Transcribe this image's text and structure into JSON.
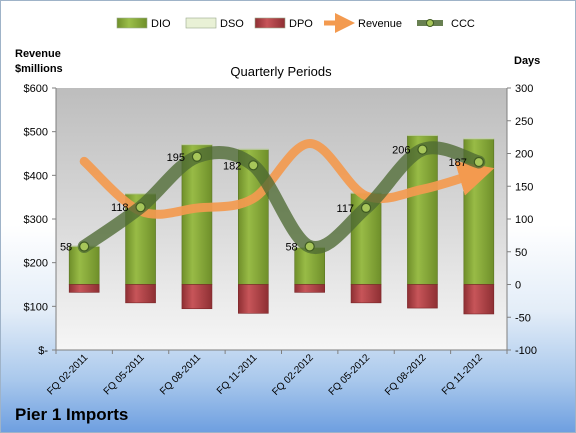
{
  "company": "Pier 1 Imports",
  "chart_data": {
    "type": "bar",
    "subtitle": "Quarterly Periods",
    "left_axis_label": [
      "Revenue",
      "$millions"
    ],
    "right_axis_label": "Days",
    "categories": [
      "FQ 02-2011",
      "FQ 05-2011",
      "FQ 08-2011",
      "FQ 11-2011",
      "FQ 02-2012",
      "FQ 05-2012",
      "FQ 08-2012",
      "FQ 11-2012"
    ],
    "left_ticks": [
      "$-",
      "$100",
      "$200",
      "$300",
      "$400",
      "$500",
      "$600"
    ],
    "left_ylim": [
      0,
      600
    ],
    "right_ticks": [
      "-100",
      "-50",
      "0",
      "50",
      "100",
      "150",
      "200",
      "250",
      "300"
    ],
    "right_ylim": [
      -100,
      300
    ],
    "grid": false,
    "legend_position": "top",
    "series": [
      {
        "name": "DIO",
        "axis": "right",
        "kind": "stacked-bar",
        "color": "#8fb03c",
        "values": [
          58,
          138,
          213,
          206,
          56,
          139,
          227,
          222
        ]
      },
      {
        "name": "DSO",
        "axis": "right",
        "kind": "stacked-bar",
        "color": "#e9f1d6",
        "values": [
          1,
          1,
          1,
          1,
          1,
          1,
          1,
          1
        ]
      },
      {
        "name": "DPO",
        "axis": "right",
        "kind": "stacked-bar-negative",
        "color": "#b94a4e",
        "values": [
          -12,
          -28,
          -37,
          -44,
          -12,
          -28,
          -36,
          -45
        ]
      },
      {
        "name": "Revenue",
        "axis": "left",
        "kind": "smooth-line-arrow",
        "color": "#f39a4f",
        "values": [
          432,
          318,
          325,
          347,
          473,
          353,
          368,
          406
        ]
      },
      {
        "name": "CCC",
        "axis": "right",
        "kind": "smooth-line-markers",
        "color": "#4e6a33",
        "values": [
          58,
          118,
          195,
          182,
          58,
          117,
          206,
          187
        ]
      }
    ],
    "data_labels": [
      "58",
      "118",
      "195",
      "182",
      "58",
      "117",
      "206",
      "187"
    ]
  }
}
